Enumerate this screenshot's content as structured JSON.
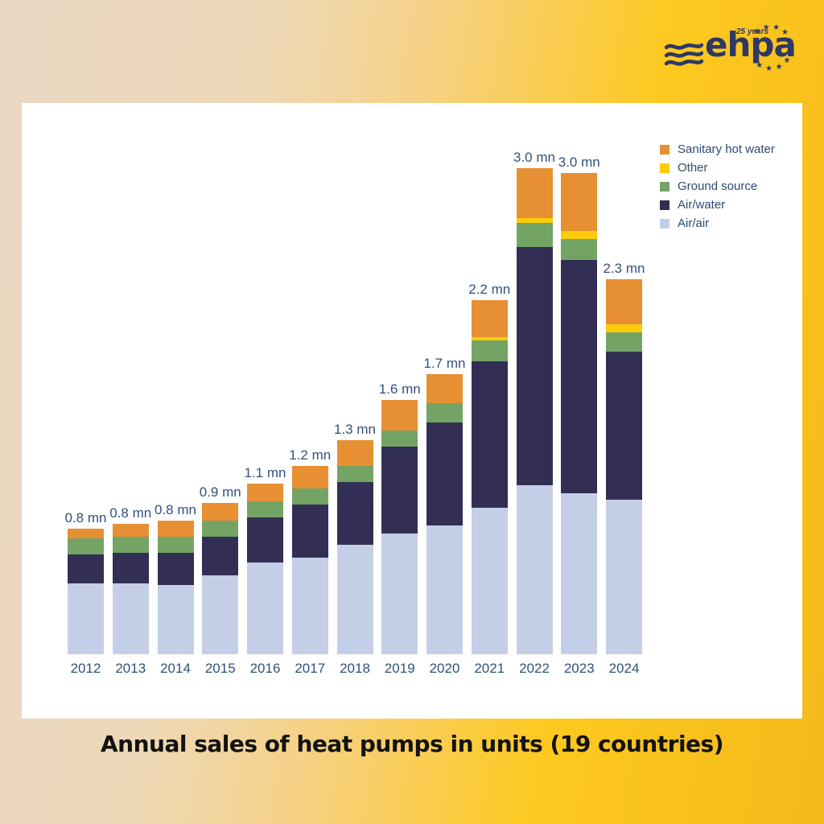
{
  "logo": {
    "brand": "ehpa",
    "anniversary": "25 years"
  },
  "title": "Annual sales of heat pumps in units (19 countries)",
  "colors": {
    "background_left": "#e9d8c4",
    "background_right": "#f5b91b",
    "card": "#ffffff",
    "label_text": "#30517d",
    "legend_text": "#2b4a72",
    "logo_navy": "#2e3865",
    "title_text": "#121212",
    "sanitary_hot_water": "#e78f33",
    "other": "#fccc0a",
    "ground_source": "#74a465",
    "air_water": "#332e53",
    "air_air": "#c4cfe7"
  },
  "chart_data": {
    "type": "bar",
    "stacked": true,
    "title": "Annual sales of heat pumps in units (19 countries)",
    "unit": "mn units",
    "grid": false,
    "legend_position": "top-right",
    "legend_order": [
      "Sanitary hot water",
      "Other",
      "Ground source",
      "Air/water",
      "Air/air"
    ],
    "categories": [
      "2012",
      "2013",
      "2014",
      "2015",
      "2016",
      "2017",
      "2018",
      "2019",
      "2020",
      "2021",
      "2022",
      "2023",
      "2024"
    ],
    "bar_labels": [
      "0.8 mn",
      "0.8 mn",
      "0.8 mn",
      "0.9 mn",
      "1.1 mn",
      "1.2 mn",
      "1.3 mn",
      "1.6 mn",
      "1.7 mn",
      "2.2 mn",
      "3.0 mn",
      "3.0 mn",
      "2.3 mn"
    ],
    "totals_mn": [
      0.8,
      0.8,
      0.8,
      0.9,
      1.1,
      1.2,
      1.3,
      1.6,
      1.7,
      2.2,
      3.0,
      3.0,
      2.3
    ],
    "series": [
      {
        "name": "Air/air",
        "key": "air_air",
        "color": "#c4cfe7",
        "values": [
          0.44,
          0.44,
          0.43,
          0.49,
          0.57,
          0.6,
          0.68,
          0.75,
          0.8,
          0.91,
          1.05,
          1.0,
          0.96
        ]
      },
      {
        "name": "Air/water",
        "key": "air_water",
        "color": "#332e53",
        "values": [
          0.18,
          0.19,
          0.2,
          0.24,
          0.28,
          0.33,
          0.39,
          0.54,
          0.64,
          0.91,
          1.48,
          1.45,
          0.92
        ]
      },
      {
        "name": "Ground source",
        "key": "ground_source",
        "color": "#74a465",
        "values": [
          0.1,
          0.1,
          0.1,
          0.1,
          0.1,
          0.1,
          0.1,
          0.1,
          0.12,
          0.13,
          0.15,
          0.13,
          0.12
        ]
      },
      {
        "name": "Other",
        "key": "other",
        "color": "#fccc0a",
        "values": [
          0,
          0,
          0,
          0,
          0,
          0,
          0,
          0,
          0,
          0.02,
          0.03,
          0.05,
          0.05
        ]
      },
      {
        "name": "Sanitary hot water",
        "key": "sanitary_hot_water",
        "color": "#e78f33",
        "values": [
          0.06,
          0.08,
          0.1,
          0.11,
          0.11,
          0.14,
          0.16,
          0.19,
          0.18,
          0.23,
          0.31,
          0.36,
          0.28
        ]
      }
    ]
  }
}
